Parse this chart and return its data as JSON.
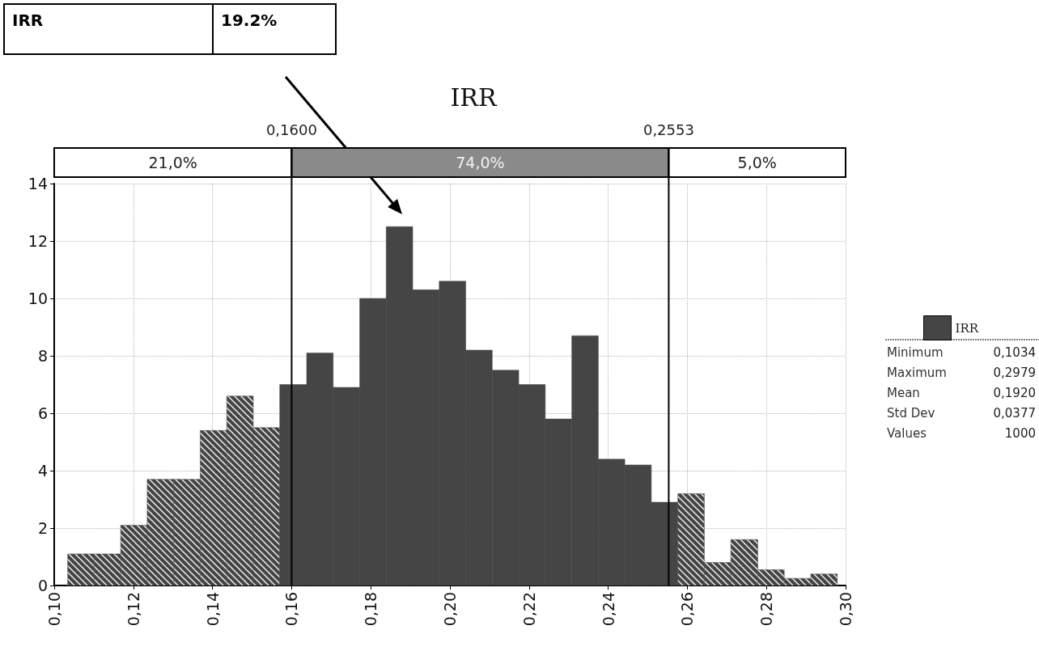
{
  "chart_data": {
    "type": "histogram",
    "title": "IRR",
    "bins": [
      0.1034,
      0.1101,
      0.1168,
      0.1235,
      0.1302,
      0.1369,
      0.1436,
      0.1503,
      0.157,
      0.1638,
      0.1705,
      0.1772,
      0.1839,
      0.1906,
      0.1973,
      0.204,
      0.2107,
      0.2174,
      0.2241,
      0.2308,
      0.2375,
      0.2442,
      0.2509,
      0.2576,
      0.2643,
      0.271,
      0.2778,
      0.2845,
      0.2912,
      0.2979
    ],
    "series": [
      {
        "name": "IRR",
        "color": "#454545",
        "values": [
          1.1,
          1.1,
          2.1,
          3.7,
          3.7,
          5.4,
          6.6,
          5.5,
          7.0,
          8.1,
          6.9,
          10.0,
          12.5,
          10.3,
          10.6,
          8.2,
          7.5,
          7.0,
          5.8,
          8.7,
          4.4,
          4.2,
          2.9,
          3.2,
          0.8,
          1.6,
          0.55,
          0.25,
          0.4
        ]
      }
    ],
    "xlim": [
      0.1,
      0.3
    ],
    "xticks": [
      {
        "value": 0.1,
        "label": "0,10"
      },
      {
        "value": 0.12,
        "label": "0,12"
      },
      {
        "value": 0.14,
        "label": "0,14"
      },
      {
        "value": 0.16,
        "label": "0,16"
      },
      {
        "value": 0.18,
        "label": "0,18"
      },
      {
        "value": 0.2,
        "label": "0,20"
      },
      {
        "value": 0.22,
        "label": "0,22"
      },
      {
        "value": 0.24,
        "label": "0,24"
      },
      {
        "value": 0.26,
        "label": "0,26"
      },
      {
        "value": 0.28,
        "label": "0,28"
      },
      {
        "value": 0.3,
        "label": "0,30"
      }
    ],
    "ylim": [
      0,
      14
    ],
    "yticks": [
      0,
      2,
      4,
      6,
      8,
      10,
      12,
      14
    ],
    "grid": true,
    "legend": "right",
    "ref_lines": [
      {
        "axis": "x",
        "value": 0.16,
        "label": "0,1600"
      },
      {
        "axis": "x",
        "value": 0.2553,
        "label": "0,2553"
      }
    ],
    "annotations": [
      "IRR",
      "19.2%",
      "21,0%",
      "74,0%",
      "5,0%",
      "Minimum 0,1034",
      "Maximum 0,2979",
      "Mean 0,1920",
      "Std Dev 0,0377",
      "Values 1000"
    ]
  }
}
